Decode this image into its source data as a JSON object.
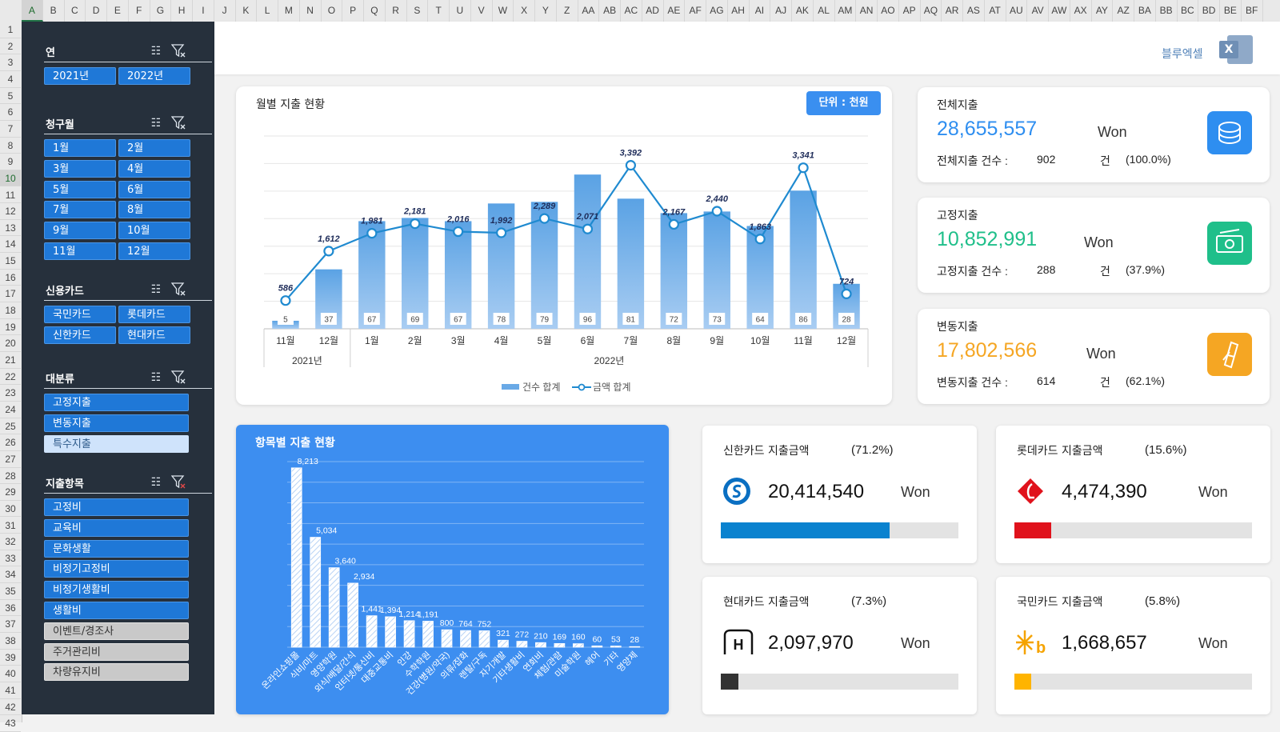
{
  "columns": [
    "A",
    "B",
    "C",
    "D",
    "E",
    "F",
    "G",
    "H",
    "I",
    "J",
    "K",
    "L",
    "M",
    "N",
    "O",
    "P",
    "Q",
    "R",
    "S",
    "T",
    "U",
    "V",
    "W",
    "X",
    "Y",
    "Z",
    "AA",
    "AB",
    "AC",
    "AD",
    "AE",
    "AF",
    "AG",
    "AH",
    "AI",
    "AJ",
    "AK",
    "AL",
    "AM",
    "AN",
    "AO",
    "AP",
    "AQ",
    "AR",
    "AS",
    "AT",
    "AU",
    "AV",
    "AW",
    "AX",
    "AY",
    "AZ",
    "BA",
    "BB",
    "BC",
    "BD",
    "BE",
    "BF"
  ],
  "rows": [
    "1",
    "2",
    "3",
    "4",
    "5",
    "6",
    "7",
    "8",
    "9",
    "10",
    "11",
    "12",
    "13",
    "14",
    "15",
    "16",
    "17",
    "18",
    "19",
    "20",
    "21",
    "22",
    "23",
    "24",
    "25",
    "26",
    "27",
    "28",
    "29",
    "30",
    "31",
    "32",
    "33",
    "34",
    "35",
    "36",
    "37",
    "38",
    "39",
    "40",
    "41",
    "42",
    "43"
  ],
  "selected_column": "A",
  "selected_row": "10",
  "header": {
    "brand_text": "블루엑셀",
    "logo_icon": "excel-logo-icon"
  },
  "slicers": {
    "year": {
      "title": "연",
      "items": [
        "2021년",
        "2022년"
      ]
    },
    "month": {
      "title": "청구월",
      "items": [
        "1월",
        "2월",
        "3월",
        "4월",
        "5월",
        "6월",
        "7월",
        "8월",
        "9월",
        "10월",
        "11월",
        "12월"
      ]
    },
    "card": {
      "title": "신용카드",
      "items": [
        "국민카드",
        "롯데카드",
        "신한카드",
        "현대카드"
      ]
    },
    "category": {
      "title": "대분류",
      "items": [
        "고정지출",
        "변동지출",
        "특수지출"
      ]
    },
    "expense_item": {
      "title": "지출항목",
      "items": [
        "고정비",
        "교육비",
        "문화생활",
        "비정기고정비",
        "비정기생활비",
        "생활비",
        "이벤트/경조사",
        "주거관리비",
        "차량유지비"
      ]
    }
  },
  "monthly_chart": {
    "title": "월별 지출 현황",
    "unit_badge": "단위 : 천원",
    "legend_count": "건수 합계",
    "legend_amount": "금액 합계",
    "year_labels": [
      "2021년",
      "2022년"
    ]
  },
  "chart_data": [
    {
      "type": "bar",
      "title": "월별 지출 현황",
      "categories": [
        "11월",
        "12월",
        "1월",
        "2월",
        "3월",
        "4월",
        "5월",
        "6월",
        "7월",
        "8월",
        "9월",
        "10월",
        "11월",
        "12월"
      ],
      "groups": [
        {
          "label": "2021년",
          "span": 2
        },
        {
          "label": "2022년",
          "span": 12
        }
      ],
      "series": [
        {
          "name": "건수 합계",
          "kind": "bar",
          "values": [
            5,
            37,
            67,
            69,
            67,
            78,
            79,
            96,
            81,
            72,
            73,
            64,
            86,
            28
          ],
          "color": "#6aa9e6"
        },
        {
          "name": "금액 합계",
          "kind": "line",
          "values": [
            586,
            1612,
            1981,
            2181,
            2016,
            1992,
            2289,
            2071,
            3392,
            2167,
            2440,
            1863,
            3341,
            724
          ],
          "color": "#1f8ad0"
        }
      ],
      "grid": true,
      "legend_position": "bottom"
    },
    {
      "type": "bar",
      "title": "항목별 지출 현황",
      "categories": [
        "온라인쇼핑몰",
        "식비/마트",
        "영양학원",
        "외식/배달/간식",
        "인터넷/통신비",
        "대중교통비",
        "인강",
        "수학학원",
        "건강(병원/약국)",
        "의류/잡화",
        "렌탈/구독",
        "자기개발",
        "기타생활비",
        "연회비",
        "체험/관람",
        "미술학원",
        "헤어",
        "기타",
        "영양제"
      ],
      "values": [
        8213,
        5034,
        3640,
        2934,
        1441,
        1394,
        1214,
        1191,
        800,
        764,
        752,
        321,
        272,
        210,
        169,
        160,
        60,
        53,
        28
      ],
      "color": "#3f8ff0",
      "grid": true
    }
  ],
  "item_chart": {
    "title": "항목별 지출 현황"
  },
  "kpis": [
    {
      "title": "전체지출",
      "amount": "28,655,557",
      "unit": "Won",
      "count_label": "전체지출 건수 :",
      "count": "902",
      "count_unit": "건",
      "pct": "(100.0%)",
      "color": "#2e8ef0",
      "icon": "coins-icon"
    },
    {
      "title": "고정지출",
      "amount": "10,852,991",
      "unit": "Won",
      "count_label": "고정지출 건수 :",
      "count": "288",
      "count_unit": "건",
      "pct": "(37.9%)",
      "color": "#1fbf8a",
      "icon": "cash-icon"
    },
    {
      "title": "변동지출",
      "amount": "17,802,566",
      "unit": "Won",
      "count_label": "변동지출 건수 :",
      "count": "614",
      "count_unit": "건",
      "pct": "(62.1%)",
      "color": "#f5a623",
      "icon": "receipt-icon"
    }
  ],
  "cards": [
    {
      "title": "신한카드 지출금액",
      "pct": "(71.2%)",
      "amount": "20,414,540",
      "unit": "Won",
      "share": 0.712,
      "color": "#0a82cf",
      "icon": "shinhan-logo-icon"
    },
    {
      "title": "롯데카드 지출금액",
      "pct": "(15.6%)",
      "amount": "4,474,390",
      "unit": "Won",
      "share": 0.156,
      "color": "#e0121c",
      "icon": "lotte-logo-icon"
    },
    {
      "title": "현대카드 지출금액",
      "pct": "(7.3%)",
      "amount": "2,097,970",
      "unit": "Won",
      "share": 0.073,
      "color": "#333333",
      "icon": "hyundai-logo-icon"
    },
    {
      "title": "국민카드 지출금액",
      "pct": "(5.8%)",
      "amount": "1,668,657",
      "unit": "Won",
      "share": 0.058,
      "color": "#ffb400",
      "icon": "kb-logo-icon"
    }
  ]
}
